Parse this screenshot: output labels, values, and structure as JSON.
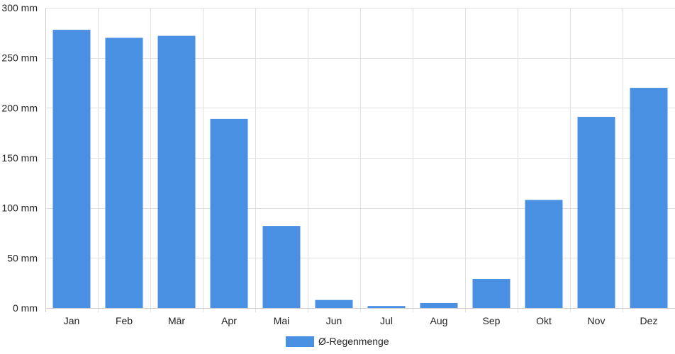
{
  "chart_data": {
    "type": "bar",
    "categories": [
      "Jan",
      "Feb",
      "Mär",
      "Apr",
      "Mai",
      "Jun",
      "Jul",
      "Aug",
      "Sep",
      "Okt",
      "Nov",
      "Dez"
    ],
    "series": [
      {
        "name": "Ø-Regenmenge",
        "color": "#4a90e2",
        "values": [
          278,
          270,
          272,
          189,
          82,
          8,
          2,
          5,
          29,
          108,
          191,
          220
        ]
      }
    ],
    "y_unit": "mm",
    "ylim": [
      0,
      300
    ],
    "yticks": [
      0,
      50,
      100,
      150,
      200,
      250,
      300
    ],
    "ytick_labels": [
      "0 mm",
      "50 mm",
      "100 mm",
      "150 mm",
      "200 mm",
      "250 mm",
      "300 mm"
    ],
    "grid": true,
    "legend_position": "bottom-center",
    "colors": {
      "grid": "#e0e0e0",
      "axis": "#cccccc",
      "text": "#222222"
    }
  }
}
